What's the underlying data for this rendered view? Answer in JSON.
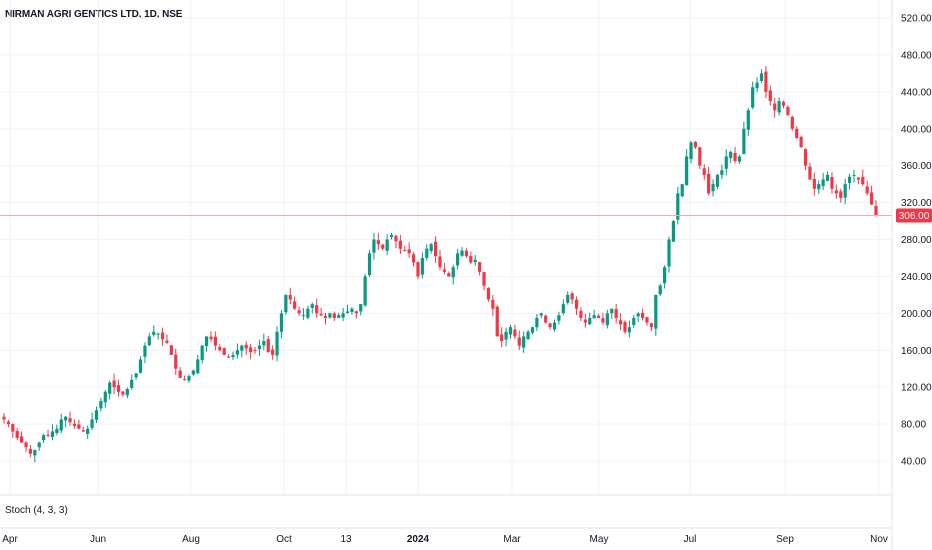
{
  "header": {
    "title": "NIRMAN AGRI GENTICS LTD, 1D, NSE"
  },
  "indicator": {
    "label": "Stoch (4, 3, 3)"
  },
  "price_badge": {
    "value": "306.00"
  },
  "colors": {
    "up": "#089981",
    "down": "#f23645",
    "price_line": "#f7a7ad",
    "badge": "#f23645",
    "grid": "#f0f3fa"
  },
  "chart_data": {
    "type": "candlestick",
    "title": "NIRMAN AGRI GENTICS LTD, 1D, NSE",
    "ylim": [
      10,
      540
    ],
    "y_ticks": [
      "520.00",
      "480.00",
      "440.00",
      "400.00",
      "360.00",
      "320.00",
      "280.00",
      "240.00",
      "200.00",
      "160.00",
      "120.00",
      "80.00",
      "40.00"
    ],
    "y_tick_values": [
      520,
      480,
      440,
      400,
      360,
      320,
      280,
      240,
      200,
      160,
      120,
      80,
      40
    ],
    "x_ticks": [
      {
        "label": "Apr",
        "bold": false
      },
      {
        "label": "Jun",
        "bold": false
      },
      {
        "label": "Aug",
        "bold": false
      },
      {
        "label": "Oct",
        "bold": false
      },
      {
        "label": "13",
        "bold": false
      },
      {
        "label": "2024",
        "bold": true
      },
      {
        "label": "Mar",
        "bold": false
      },
      {
        "label": "May",
        "bold": false
      },
      {
        "label": "Jul",
        "bold": false
      },
      {
        "label": "Sep",
        "bold": false
      },
      {
        "label": "Nov",
        "bold": false
      }
    ],
    "last_price": 306,
    "close_series": [
      85,
      80,
      72,
      65,
      60,
      55,
      48,
      52,
      60,
      68,
      68,
      72,
      75,
      85,
      88,
      82,
      78,
      75,
      72,
      75,
      85,
      95,
      105,
      115,
      125,
      120,
      115,
      112,
      118,
      128,
      135,
      150,
      165,
      175,
      180,
      178,
      172,
      168,
      155,
      140,
      130,
      128,
      132,
      138,
      150,
      165,
      175,
      172,
      165,
      160,
      155,
      152,
      155,
      160,
      165,
      162,
      158,
      160,
      165,
      170,
      158,
      155,
      180,
      200,
      220,
      215,
      205,
      200,
      198,
      205,
      210,
      200,
      198,
      195,
      200,
      195,
      198,
      200,
      202,
      205,
      200,
      210,
      240,
      265,
      280,
      275,
      270,
      280,
      285,
      278,
      270,
      268,
      265,
      255,
      240,
      260,
      270,
      275,
      262,
      250,
      245,
      240,
      250,
      265,
      268,
      262,
      255,
      258,
      245,
      230,
      215,
      205,
      175,
      170,
      180,
      185,
      175,
      165,
      175,
      180,
      185,
      195,
      200,
      190,
      185,
      190,
      198,
      210,
      220,
      215,
      205,
      195,
      190,
      195,
      198,
      195,
      190,
      200,
      205,
      195,
      188,
      180,
      185,
      195,
      200,
      195,
      190,
      185,
      220,
      230,
      250,
      280,
      300,
      330,
      340,
      370,
      385,
      380,
      360,
      350,
      330,
      340,
      350,
      355,
      370,
      375,
      365,
      370,
      400,
      420,
      445,
      450,
      460,
      440,
      430,
      420,
      430,
      425,
      415,
      400,
      390,
      380,
      360,
      345,
      335,
      340,
      345,
      350,
      335,
      330,
      325,
      340,
      348,
      350,
      345,
      340,
      330,
      318,
      306
    ]
  }
}
